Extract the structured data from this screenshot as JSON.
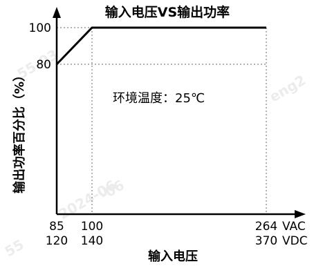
{
  "chart_data": {
    "type": "line",
    "title": "输入电压VS输出功率",
    "xlabel": "输入电压",
    "ylabel": "输出功率百分比（%）",
    "x_unit_ac": "VAC",
    "x_unit_dc": "VDC",
    "x_ticks_ac": [
      "85",
      "100",
      "264"
    ],
    "x_ticks_dc": [
      "120",
      "140",
      "370"
    ],
    "y_ticks": [
      "80",
      "100"
    ],
    "annotation": "环境温度：25℃",
    "watermarks": [
      "55-03",
      "-06",
      "eng2",
      "55",
      "2024-06"
    ],
    "series": [
      {
        "x": [
          85,
          100,
          264
        ],
        "y": [
          80,
          100,
          100
        ]
      }
    ],
    "y_values": [
      80,
      100
    ],
    "grid": "dotted reference lines at 100 VAC, 264 VAC, 80 % and 100 %"
  }
}
